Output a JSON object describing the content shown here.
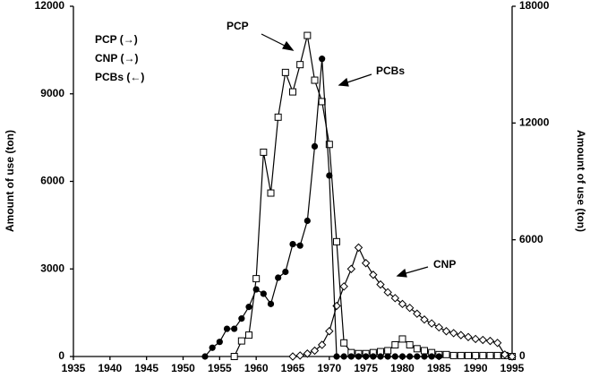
{
  "chart_data": {
    "type": "line",
    "ylabel": "Amount of use (ton)",
    "y2label": "Amount of use (ton)",
    "xlim": [
      1935,
      1995
    ],
    "xticks": [
      1935,
      1940,
      1945,
      1950,
      1955,
      1960,
      1965,
      1970,
      1975,
      1980,
      1985,
      1990,
      1995
    ],
    "ylim": [
      0,
      12000
    ],
    "yticks": [
      0,
      3000,
      6000,
      9000,
      12000
    ],
    "y2lim": [
      0,
      18000
    ],
    "y2ticks": [
      0,
      6000,
      12000,
      18000
    ],
    "series": [
      {
        "name": "PCP (→)",
        "color": "#000000",
        "marker": "square",
        "axis": "y2",
        "x": [
          1957,
          1958,
          1959,
          1960,
          1961,
          1962,
          1963,
          1964,
          1965,
          1966,
          1967,
          1968,
          1969,
          1970,
          1971,
          1972,
          1973,
          1974,
          1975,
          1976,
          1977,
          1978,
          1979,
          1980,
          1981,
          1982,
          1983,
          1984,
          1985,
          1986,
          1987,
          1988,
          1989,
          1990,
          1991,
          1992,
          1993,
          1994,
          1995
        ],
        "values": [
          0,
          800,
          1100,
          4000,
          10500,
          8400,
          12300,
          14600,
          13600,
          15000,
          16500,
          14200,
          13100,
          10900,
          5900,
          700,
          200,
          150,
          150,
          200,
          250,
          300,
          600,
          900,
          600,
          400,
          300,
          200,
          100,
          100,
          50,
          50,
          50,
          50,
          50,
          50,
          50,
          50,
          0
        ]
      },
      {
        "name": "CNP (→)",
        "color": "#000000",
        "marker": "diamond",
        "axis": "y2",
        "x": [
          1965,
          1966,
          1967,
          1968,
          1969,
          1970,
          1971,
          1972,
          1973,
          1974,
          1975,
          1976,
          1977,
          1978,
          1979,
          1980,
          1981,
          1982,
          1983,
          1984,
          1985,
          1986,
          1987,
          1988,
          1989,
          1990,
          1991,
          1992,
          1993,
          1994,
          1995
        ],
        "values": [
          0,
          50,
          150,
          300,
          600,
          1300,
          2600,
          3600,
          4500,
          5600,
          4800,
          4200,
          3700,
          3300,
          3000,
          2700,
          2500,
          2200,
          1900,
          1700,
          1500,
          1300,
          1200,
          1100,
          1000,
          900,
          850,
          800,
          700,
          100,
          0
        ]
      },
      {
        "name": "PCBs (←)",
        "color": "#000000",
        "marker": "circle-filled",
        "axis": "y",
        "x": [
          1953,
          1954,
          1955,
          1956,
          1957,
          1958,
          1959,
          1960,
          1961,
          1962,
          1963,
          1964,
          1965,
          1966,
          1967,
          1968,
          1969,
          1970,
          1971,
          1972,
          1973,
          1974,
          1975,
          1976,
          1977,
          1978,
          1979,
          1980,
          1981,
          1982,
          1983,
          1984,
          1985
        ],
        "values": [
          0,
          300,
          500,
          950,
          950,
          1300,
          1700,
          2300,
          2150,
          1800,
          2700,
          2900,
          3850,
          3800,
          4650,
          7200,
          10200,
          6200,
          0,
          0,
          0,
          0,
          0,
          0,
          0,
          0,
          0,
          0,
          0,
          0,
          0,
          0,
          0
        ]
      }
    ],
    "annotations": [
      "PCP",
      "PCBs",
      "CNP"
    ]
  }
}
